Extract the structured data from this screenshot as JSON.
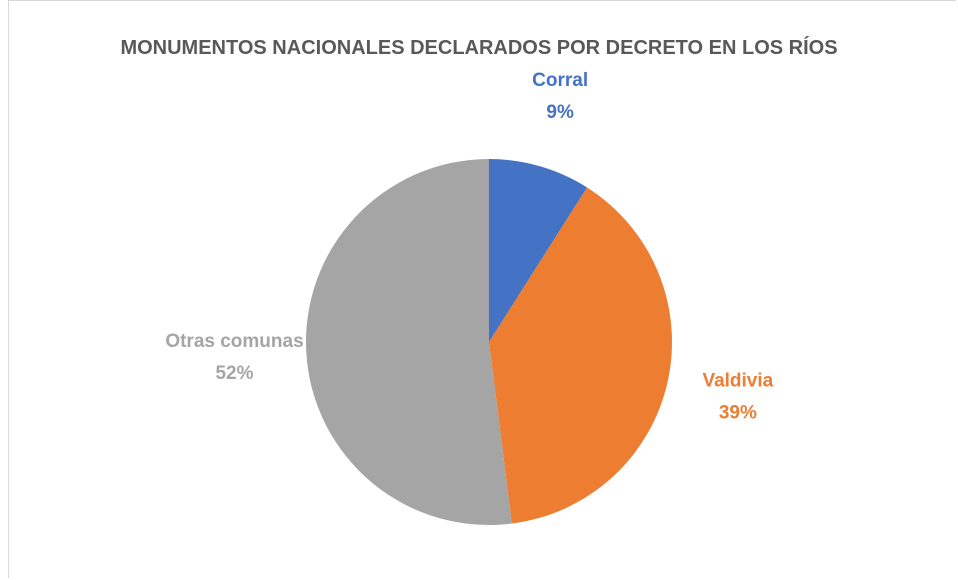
{
  "chart_data": {
    "type": "pie",
    "title": "MONUMENTOS NACIONALES DECLARADOS POR DECRETO EN LOS RÍOS",
    "categories": [
      "Corral",
      "Valdivia",
      "Otras comunas"
    ],
    "values": [
      9,
      39,
      52
    ],
    "value_labels": [
      "9%",
      "39%",
      "52%"
    ],
    "colors": [
      "#4472c4",
      "#ed7d31",
      "#a5a5a5"
    ]
  }
}
